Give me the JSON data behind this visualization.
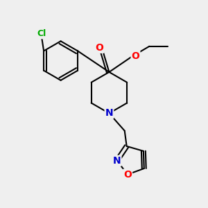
{
  "background_color": "#efefef",
  "atom_colors": {
    "C": "#000000",
    "N": "#0000cc",
    "O": "#ff0000",
    "Cl": "#00aa00"
  },
  "bond_color": "#000000",
  "bond_width": 1.5,
  "font_size": 10
}
